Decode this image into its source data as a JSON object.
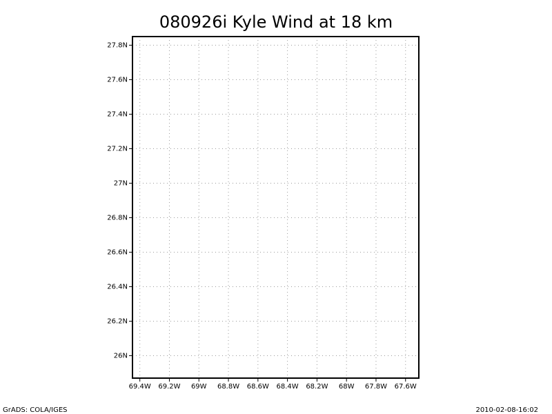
{
  "chart_data": {
    "type": "map",
    "title": "080926i Kyle Wind at 18 km",
    "xlim": [
      -69.45,
      -67.51
    ],
    "ylim": [
      25.87,
      27.85
    ],
    "xticks": [
      {
        "value": -69.4,
        "label": "69.4W"
      },
      {
        "value": -69.2,
        "label": "69.2W"
      },
      {
        "value": -69,
        "label": "69W"
      },
      {
        "value": -68.8,
        "label": "68.8W"
      },
      {
        "value": -68.6,
        "label": "68.6W"
      },
      {
        "value": -68.4,
        "label": "68.4W"
      },
      {
        "value": -68.2,
        "label": "68.2W"
      },
      {
        "value": -68,
        "label": "68W"
      },
      {
        "value": -67.8,
        "label": "67.8W"
      },
      {
        "value": -67.6,
        "label": "67.6W"
      }
    ],
    "yticks": [
      {
        "value": 26,
        "label": "26N"
      },
      {
        "value": 26.2,
        "label": "26.2N"
      },
      {
        "value": 26.4,
        "label": "26.4N"
      },
      {
        "value": 26.6,
        "label": "26.6N"
      },
      {
        "value": 26.8,
        "label": "26.8N"
      },
      {
        "value": 27,
        "label": "27N"
      },
      {
        "value": 27.2,
        "label": "27.2N"
      },
      {
        "value": 27.4,
        "label": "27.4N"
      },
      {
        "value": 27.6,
        "label": "27.6N"
      },
      {
        "value": 27.8,
        "label": "27.8N"
      }
    ],
    "grid": true,
    "footer_left": "GrADS: COLA/IGES",
    "footer_right": "2010-02-08-16:02"
  }
}
